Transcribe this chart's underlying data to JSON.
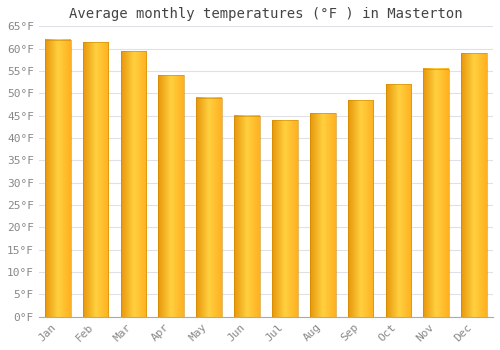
{
  "title": "Average monthly temperatures (°F ) in Masterton",
  "months": [
    "Jan",
    "Feb",
    "Mar",
    "Apr",
    "May",
    "Jun",
    "Jul",
    "Aug",
    "Sep",
    "Oct",
    "Nov",
    "Dec"
  ],
  "values": [
    62,
    61.5,
    59.5,
    54,
    49,
    45,
    44,
    45.5,
    48.5,
    52,
    55.5,
    59
  ],
  "bar_color_left": "#E8950A",
  "bar_color_center": "#FFD040",
  "bar_color_right": "#FFB020",
  "ylim": [
    0,
    65
  ],
  "yticks": [
    0,
    5,
    10,
    15,
    20,
    25,
    30,
    35,
    40,
    45,
    50,
    55,
    60,
    65
  ],
  "ytick_labels": [
    "0°F",
    "5°F",
    "10°F",
    "15°F",
    "20°F",
    "25°F",
    "30°F",
    "35°F",
    "40°F",
    "45°F",
    "50°F",
    "55°F",
    "60°F",
    "65°F"
  ],
  "background_color": "#ffffff",
  "grid_color": "#e0e0e8",
  "title_fontsize": 10,
  "tick_fontsize": 8,
  "font_family": "monospace",
  "tick_color": "#888888",
  "title_color": "#444444"
}
